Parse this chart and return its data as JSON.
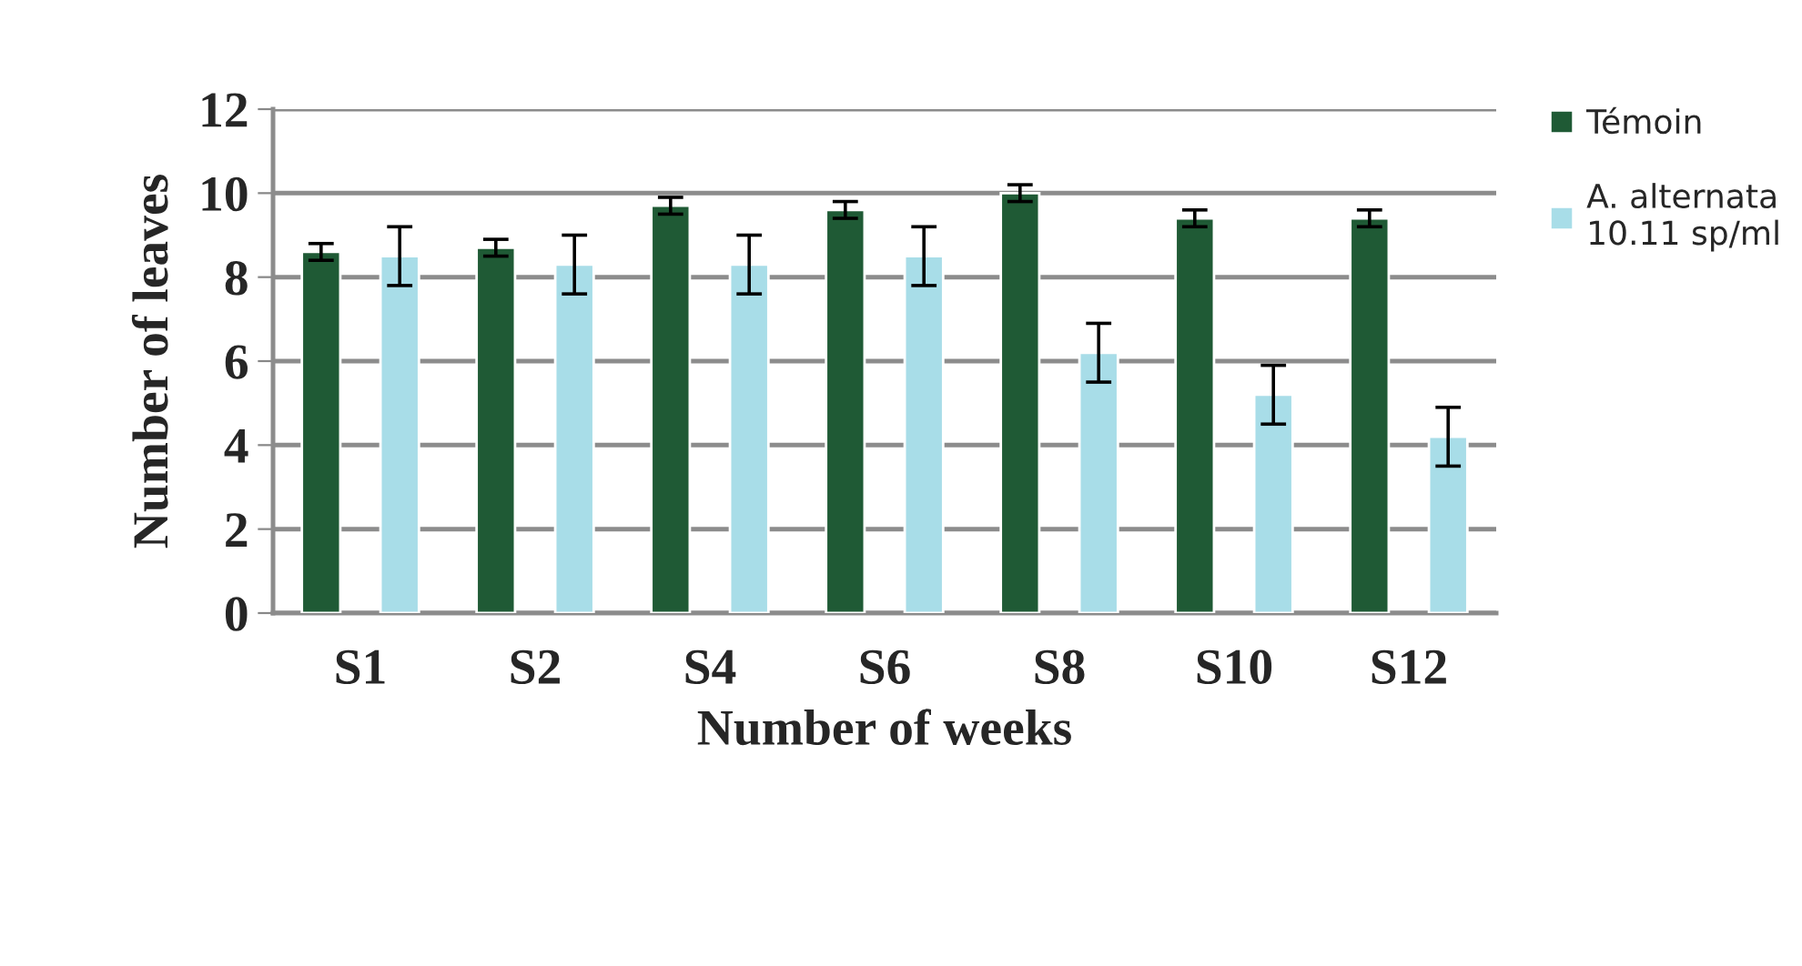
{
  "chart_data": {
    "type": "bar",
    "xlabel": "Number of weeks",
    "ylabel": "Number of leaves",
    "categories": [
      "S1",
      "S2",
      "S4",
      "S6",
      "S8",
      "S10",
      "S12"
    ],
    "series": [
      {
        "name": "Témoin",
        "color": "#1f5a35",
        "values": [
          8.6,
          8.7,
          9.7,
          9.6,
          10.0,
          9.4,
          9.4
        ],
        "errors": [
          0.2,
          0.2,
          0.2,
          0.2,
          0.2,
          0.2,
          0.2
        ]
      },
      {
        "name": "A. alternata\n10.11 sp/ml",
        "color": "#a8dde8",
        "values": [
          8.5,
          8.3,
          8.3,
          8.5,
          6.2,
          5.2,
          4.2
        ],
        "errors": [
          0.7,
          0.7,
          0.7,
          0.7,
          0.7,
          0.7,
          0.7
        ]
      }
    ],
    "ylim": [
      0,
      12
    ],
    "yticks": [
      0,
      2,
      4,
      6,
      8,
      10,
      12
    ],
    "grid": "y",
    "legend": "right"
  }
}
